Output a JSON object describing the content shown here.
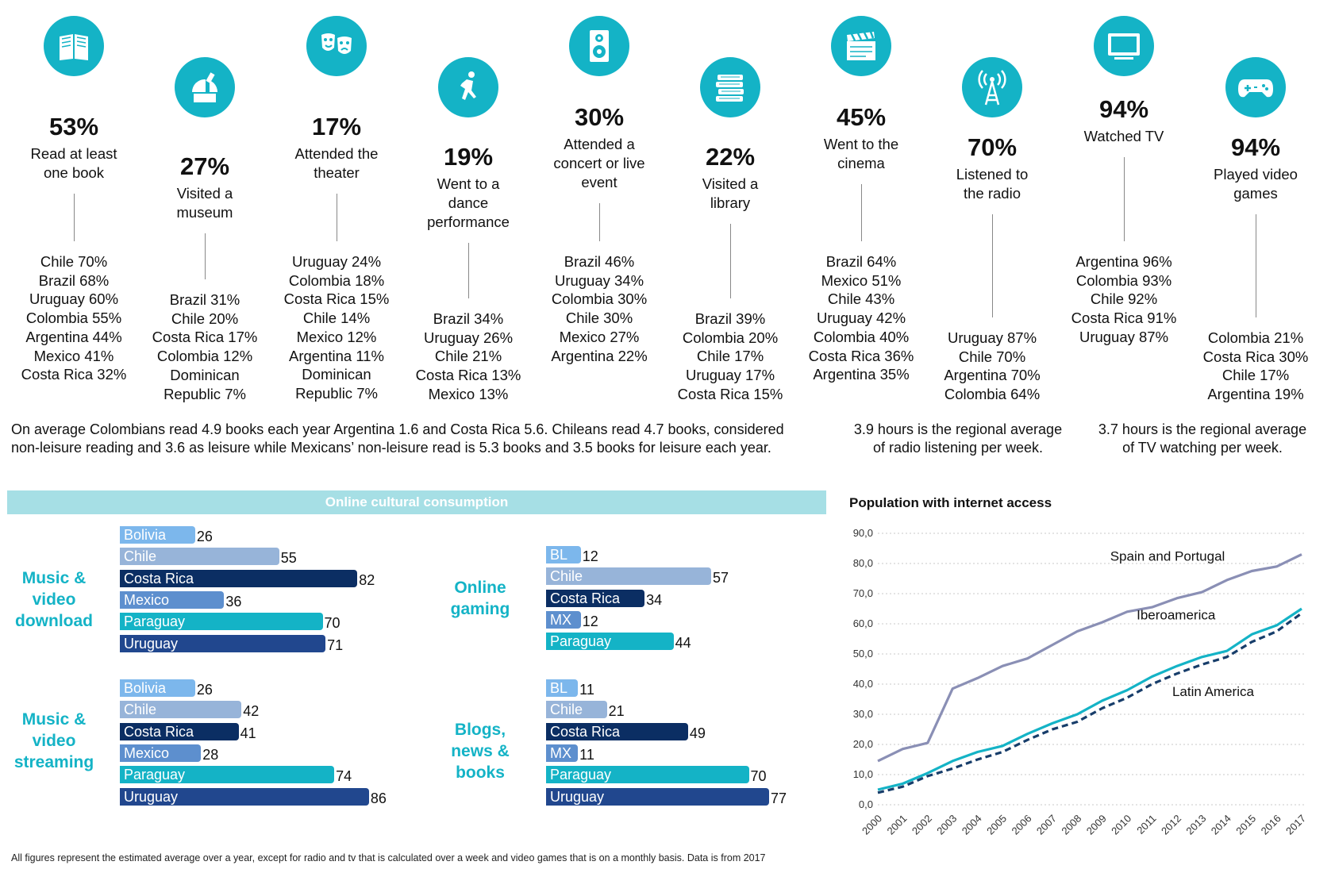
{
  "stats": [
    {
      "icon": "book-icon",
      "pct": "53%",
      "desc": [
        "Read at least",
        "one book"
      ],
      "countries": [
        "Chile 70%",
        "Brazil 68%",
        "Uruguay 60%",
        "Colombia 55%",
        "Argentina 44%",
        "Mexico 41%",
        "Costa Rica 32%"
      ]
    },
    {
      "icon": "observatory-icon",
      "pct": "27%",
      "desc": [
        "Visited a",
        "museum"
      ],
      "countries": [
        "Brazil 31%",
        "Chile 20%",
        "Costa Rica 17%",
        "Colombia 12%",
        "Dominican",
        "Republic 7%"
      ]
    },
    {
      "icon": "theater-masks-icon",
      "pct": "17%",
      "desc": [
        "Attended the",
        "theater"
      ],
      "countries": [
        "Uruguay 24%",
        "Colombia 18%",
        "Costa Rica 15%",
        "Chile 14%",
        "Mexico 12%",
        "Argentina 11%",
        "Dominican",
        "Republic 7%"
      ]
    },
    {
      "icon": "dancer-icon",
      "pct": "19%",
      "desc": [
        "Went to a",
        "dance",
        "performance"
      ],
      "countries": [
        "Brazil 34%",
        "Uruguay 26%",
        "Chile 21%",
        "Costa Rica 13%",
        "Mexico 13%"
      ]
    },
    {
      "icon": "speaker-icon",
      "pct": "30%",
      "desc": [
        "Attended a",
        "concert or live",
        "event"
      ],
      "countries": [
        "Brazil 46%",
        "Uruguay 34%",
        "Colombia 30%",
        "Chile 30%",
        "Mexico 27%",
        "Argentina 22%"
      ]
    },
    {
      "icon": "books-stack-icon",
      "pct": "22%",
      "desc": [
        "Visited a",
        "library"
      ],
      "countries": [
        "Brazil 39%",
        "Colombia 20%",
        "Chile 17%",
        "Uruguay 17%",
        "Costa Rica 15%"
      ]
    },
    {
      "icon": "clapperboard-icon",
      "pct": "45%",
      "desc": [
        "Went to the",
        "cinema"
      ],
      "countries": [
        "Brazil 64%",
        "Mexico 51%",
        "Chile 43%",
        "Uruguay 42%",
        "Colombia 40%",
        "Costa Rica 36%",
        "Argentina 35%"
      ]
    },
    {
      "icon": "radio-tower-icon",
      "pct": "70%",
      "desc": [
        "Listened to",
        "the radio"
      ],
      "countries": [
        "Uruguay 87%",
        "Chile 70%",
        "Argentina 70%",
        "Colombia 64%"
      ]
    },
    {
      "icon": "tv-icon",
      "pct": "94%",
      "desc": [
        "Watched TV"
      ],
      "countries": [
        "Argentina 96%",
        "Colombia 93%",
        "Chile 92%",
        "Costa Rica 91%",
        "Uruguay 87%"
      ]
    },
    {
      "icon": "gamepad-icon",
      "pct": "94%",
      "desc": [
        "Played video",
        "games"
      ],
      "countries": [
        "Colombia 21%",
        "Costa Rica 30%",
        "Chile 17%",
        "Argentina 19%"
      ]
    }
  ],
  "notes": {
    "books": [
      "On average Colombians read 4.9 books each year Argentina 1.6 and Costa Rica 5.6. Chileans read 4.7 books, considered",
      "non-leisure reading and 3.6 as leisure while Mexicans’ non-leisure read is 5.3 books and 3.5 books for leisure each year."
    ],
    "radio": [
      "3.9 hours is the regional average",
      "of radio listening per week."
    ],
    "tv": [
      "3.7 hours is the regional average",
      "of TV watching per week."
    ]
  },
  "online_title": "Online cultural consumption",
  "line_title": "Population with internet access",
  "footnote": "All figures represent the estimated average over a year, except for radio and tv that is calculated over a week and video games that is on a monthly basis. Data is from 2017",
  "colors": {
    "Bolivia": "#7cb7ec",
    "Chile": "#97b4d9",
    "Costa Rica": "#0b2e63",
    "Mexico": "#5d8fce",
    "Paraguay": "#14b3c6",
    "Uruguay": "#21478e",
    "BL": "#7cb7ec",
    "MX": "#5d8fce",
    "accent": "#14b3c6",
    "line_sp": "#8a8fb5",
    "line_ibero": "#14b3c6",
    "line_latam": "#173d6a"
  },
  "chart_data": [
    {
      "type": "bar",
      "title": "Music & video download",
      "categories": [
        "Bolivia",
        "Chile",
        "Costa Rica",
        "Mexico",
        "Paraguay",
        "Uruguay"
      ],
      "values": [
        26,
        55,
        82,
        36,
        70,
        71
      ]
    },
    {
      "type": "bar",
      "title": "Music & video streaming",
      "categories": [
        "Bolivia",
        "Chile",
        "Costa Rica",
        "Mexico",
        "Paraguay",
        "Uruguay"
      ],
      "values": [
        26,
        42,
        41,
        28,
        74,
        86
      ]
    },
    {
      "type": "bar",
      "title": "Online gaming",
      "categories": [
        "BL",
        "Chile",
        "Costa Rica",
        "MX",
        "Paraguay"
      ],
      "values": [
        12,
        57,
        34,
        12,
        44
      ]
    },
    {
      "type": "bar",
      "title": "Blogs, news & books",
      "categories": [
        "BL",
        "Chile",
        "Costa Rica",
        "MX",
        "Paraguay",
        "Uruguay"
      ],
      "values": [
        11,
        21,
        49,
        11,
        70,
        77
      ]
    },
    {
      "type": "line",
      "title": "Population with internet access",
      "x": [
        "2000",
        "2001",
        "2002",
        "2003",
        "2004",
        "2005",
        "2006",
        "2007",
        "2008",
        "2009",
        "2010",
        "2011",
        "2012",
        "2013",
        "2014",
        "2015",
        "2016",
        "2017"
      ],
      "ylim": [
        0,
        90
      ],
      "yticks": [
        "0,0",
        "10,0",
        "20,0",
        "30,0",
        "40,0",
        "50,0",
        "60,0",
        "70,0",
        "80,0",
        "90,0"
      ],
      "series": [
        {
          "name": "Spain and Portugal",
          "values": [
            14.5,
            18.5,
            20.5,
            38.5,
            42,
            46,
            48.5,
            53,
            57.5,
            60.5,
            64,
            65.5,
            68.5,
            70.5,
            74.5,
            77.5,
            79,
            83
          ]
        },
        {
          "name": "Iberoamerica",
          "values": [
            5,
            7,
            10.5,
            14.5,
            17.5,
            19.5,
            23.5,
            27,
            30,
            34.5,
            38,
            42.5,
            46,
            49,
            51,
            56.5,
            59.5,
            65
          ]
        },
        {
          "name": "Latin America",
          "values": [
            4,
            6,
            9.5,
            12,
            15,
            17.5,
            21.5,
            25,
            27.5,
            32,
            35.5,
            40,
            43.5,
            46.5,
            49,
            54,
            57.5,
            63.5
          ]
        }
      ]
    }
  ]
}
